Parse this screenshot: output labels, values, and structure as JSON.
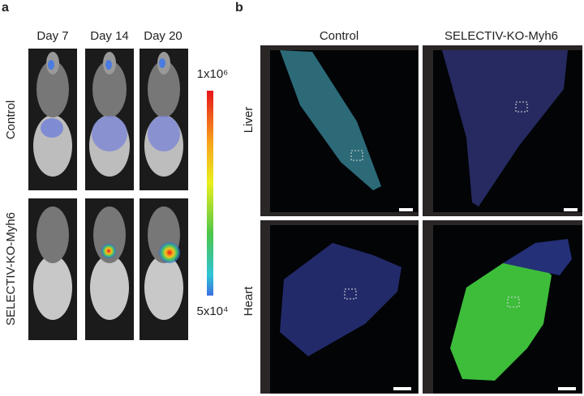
{
  "panel_a": {
    "label": "a",
    "days": [
      "Day 7",
      "Day 14",
      "Day 20"
    ],
    "rows": [
      "Control",
      "SELECTIV-KO-Myh6"
    ],
    "colorbar": {
      "max": "1x10⁶",
      "min": "5x10⁴"
    }
  },
  "panel_b": {
    "label": "b",
    "columns": [
      "Control",
      "SELECTIV-KO-Myh6"
    ],
    "rows": [
      "Liver",
      "Heart"
    ]
  }
}
